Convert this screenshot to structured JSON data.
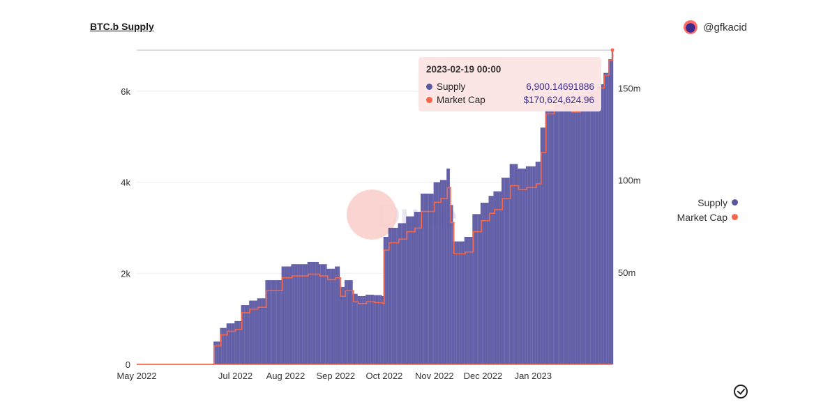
{
  "header": {
    "title": "BTC.b Supply",
    "author": "@gfkacid"
  },
  "colors": {
    "supply": "#5b57a2",
    "market_cap": "#f4664a",
    "tooltip_bg": "#fce4e4"
  },
  "tooltip": {
    "date": "2023-02-19 00:00",
    "rows": [
      {
        "label": "Supply",
        "value": "6,900.14691886"
      },
      {
        "label": "Market Cap",
        "value": "$170,624,624.96"
      }
    ]
  },
  "legend": [
    "Supply",
    "Market Cap"
  ],
  "watermark": "Dune",
  "chart_data": {
    "type": "bar",
    "title": "BTC.b Supply",
    "x_ticks": [
      "May 2022",
      "Jul 2022",
      "Aug 2022",
      "Sep 2022",
      "Oct 2022",
      "Nov 2022",
      "Dec 2022",
      "Jan 2023"
    ],
    "x_range": [
      "2022-05-01",
      "2023-02-19"
    ],
    "y_left": {
      "ticks": [
        "0",
        "2k",
        "4k",
        "6k"
      ],
      "range": [
        0,
        6900
      ]
    },
    "y_right": {
      "ticks": [
        "50m",
        "100m",
        "150m"
      ],
      "range": [
        0,
        170600000
      ]
    },
    "grid": true,
    "legend_position": "right",
    "series": [
      {
        "name": "Supply",
        "type": "bar",
        "points": [
          [
            "2022-05-01",
            0
          ],
          [
            "2022-06-15",
            0
          ],
          [
            "2022-06-18",
            500
          ],
          [
            "2022-06-22",
            800
          ],
          [
            "2022-06-26",
            900
          ],
          [
            "2022-07-01",
            950
          ],
          [
            "2022-07-05",
            1300
          ],
          [
            "2022-07-10",
            1400
          ],
          [
            "2022-07-15",
            1450
          ],
          [
            "2022-07-20",
            1850
          ],
          [
            "2022-07-26",
            1850
          ],
          [
            "2022-07-30",
            2150
          ],
          [
            "2022-08-05",
            2200
          ],
          [
            "2022-08-15",
            2250
          ],
          [
            "2022-08-22",
            2200
          ],
          [
            "2022-08-27",
            2100
          ],
          [
            "2022-09-01",
            2150
          ],
          [
            "2022-09-04",
            1700
          ],
          [
            "2022-09-07",
            1850
          ],
          [
            "2022-09-12",
            1550
          ],
          [
            "2022-09-15",
            1500
          ],
          [
            "2022-09-20",
            1530
          ],
          [
            "2022-09-25",
            1520
          ],
          [
            "2022-09-30",
            1500
          ],
          [
            "2022-10-01",
            2800
          ],
          [
            "2022-10-04",
            3000
          ],
          [
            "2022-10-10",
            3100
          ],
          [
            "2022-10-15",
            3250
          ],
          [
            "2022-10-20",
            3350
          ],
          [
            "2022-10-24",
            3750
          ],
          [
            "2022-10-28",
            3750
          ],
          [
            "2022-11-01",
            4000
          ],
          [
            "2022-11-05",
            4050
          ],
          [
            "2022-11-09",
            4300
          ],
          [
            "2022-11-11",
            3500
          ],
          [
            "2022-11-13",
            2700
          ],
          [
            "2022-11-20",
            2800
          ],
          [
            "2022-11-25",
            3300
          ],
          [
            "2022-11-30",
            3550
          ],
          [
            "2022-12-05",
            3700
          ],
          [
            "2022-12-08",
            3800
          ],
          [
            "2022-12-13",
            4100
          ],
          [
            "2022-12-18",
            4400
          ],
          [
            "2022-12-23",
            4300
          ],
          [
            "2022-12-28",
            4350
          ],
          [
            "2023-01-03",
            4450
          ],
          [
            "2023-01-06",
            5200
          ],
          [
            "2023-01-09",
            5600
          ],
          [
            "2023-01-14",
            5700
          ],
          [
            "2023-01-20",
            5800
          ],
          [
            "2023-01-25",
            5700
          ],
          [
            "2023-01-30",
            5900
          ],
          [
            "2023-02-05",
            6000
          ],
          [
            "2023-02-10",
            6150
          ],
          [
            "2023-02-14",
            6400
          ],
          [
            "2023-02-17",
            6700
          ],
          [
            "2023-02-19",
            6900
          ]
        ]
      },
      {
        "name": "Market Cap",
        "type": "line",
        "points": [
          [
            "2022-05-01",
            0
          ],
          [
            "2022-06-15",
            0
          ],
          [
            "2022-06-18",
            10000000
          ],
          [
            "2022-06-22",
            16000000
          ],
          [
            "2022-06-26",
            18000000
          ],
          [
            "2022-07-01",
            19000000
          ],
          [
            "2022-07-05",
            28000000
          ],
          [
            "2022-07-10",
            30000000
          ],
          [
            "2022-07-15",
            31000000
          ],
          [
            "2022-07-20",
            40000000
          ],
          [
            "2022-07-26",
            40000000
          ],
          [
            "2022-07-30",
            47000000
          ],
          [
            "2022-08-05",
            48000000
          ],
          [
            "2022-08-15",
            49000000
          ],
          [
            "2022-08-22",
            48000000
          ],
          [
            "2022-08-27",
            46000000
          ],
          [
            "2022-09-01",
            47000000
          ],
          [
            "2022-09-04",
            37000000
          ],
          [
            "2022-09-07",
            40000000
          ],
          [
            "2022-09-12",
            34000000
          ],
          [
            "2022-09-15",
            33000000
          ],
          [
            "2022-09-20",
            34000000
          ],
          [
            "2022-09-25",
            33500000
          ],
          [
            "2022-09-30",
            33000000
          ],
          [
            "2022-10-01",
            62000000
          ],
          [
            "2022-10-04",
            66000000
          ],
          [
            "2022-10-10",
            68000000
          ],
          [
            "2022-10-15",
            72000000
          ],
          [
            "2022-10-20",
            74000000
          ],
          [
            "2022-10-24",
            83000000
          ],
          [
            "2022-10-28",
            83000000
          ],
          [
            "2022-11-01",
            88000000
          ],
          [
            "2022-11-05",
            90000000
          ],
          [
            "2022-11-09",
            96000000
          ],
          [
            "2022-11-11",
            77000000
          ],
          [
            "2022-11-13",
            60000000
          ],
          [
            "2022-11-20",
            61000000
          ],
          [
            "2022-11-25",
            72000000
          ],
          [
            "2022-11-30",
            78000000
          ],
          [
            "2022-12-05",
            82000000
          ],
          [
            "2022-12-08",
            84000000
          ],
          [
            "2022-12-13",
            90000000
          ],
          [
            "2022-12-18",
            97000000
          ],
          [
            "2022-12-23",
            95000000
          ],
          [
            "2022-12-28",
            96000000
          ],
          [
            "2023-01-03",
            98000000
          ],
          [
            "2023-01-06",
            115000000
          ],
          [
            "2023-01-09",
            136000000
          ],
          [
            "2023-01-14",
            139000000
          ],
          [
            "2023-01-20",
            141000000
          ],
          [
            "2023-01-25",
            137000000
          ],
          [
            "2023-01-30",
            143000000
          ],
          [
            "2023-02-05",
            146000000
          ],
          [
            "2023-02-10",
            150000000
          ],
          [
            "2023-02-14",
            157000000
          ],
          [
            "2023-02-17",
            165000000
          ],
          [
            "2023-02-19",
            170624624.96
          ]
        ]
      }
    ]
  }
}
